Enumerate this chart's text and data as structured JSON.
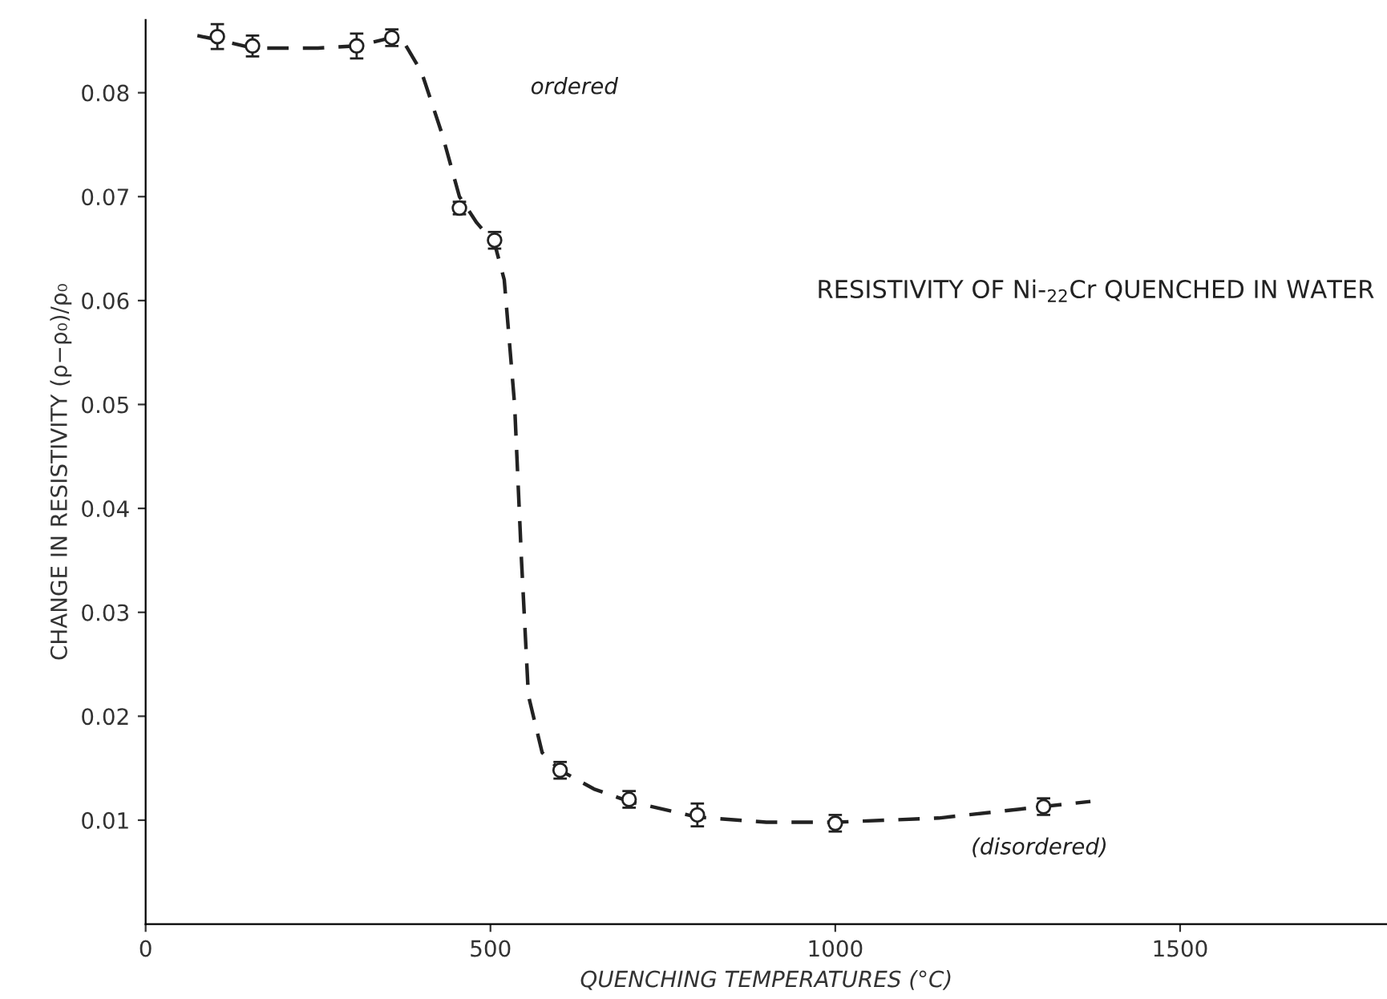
{
  "chart_data": {
    "type": "scatter",
    "title": "RESISTIVITY OF Ni-$_{22}$Cr QUENCHED IN WATER",
    "xlabel": "QUENCHING TEMPERATURES (°C)",
    "ylabel": "CHANGE IN RESISTIVITY (ρ−ρ₀)/ρ₀",
    "xlim": [
      0,
      1800
    ],
    "ylim": [
      0,
      0.087
    ],
    "xticks": [
      0,
      500,
      1000,
      1500
    ],
    "yticks": [
      0.01,
      0.02,
      0.03,
      0.04,
      0.05,
      0.06,
      0.07,
      0.08
    ],
    "grid": false,
    "legend": false,
    "series": [
      {
        "color": "#222222",
        "marker": "circle",
        "x": [
          104,
          155,
          306,
          357,
          455,
          506,
          601,
          701,
          800,
          1000,
          1302
        ],
        "values": [
          0.0854,
          0.0845,
          0.0845,
          0.0853,
          0.0689,
          0.0658,
          0.0148,
          0.012,
          0.0105,
          0.0097,
          0.0113
        ],
        "errors": [
          0.0012,
          0.001,
          0.0012,
          0.0008,
          0.0006,
          0.0008,
          0.0008,
          0.0008,
          0.0011,
          0.0008,
          0.0008
        ]
      },
      {
        "type": "line",
        "color": "#222222",
        "line_style": "dashed",
        "marker": "none",
        "x": [
          75,
          104,
          155,
          250,
          306,
          357,
          375,
          400,
          430,
          455,
          480,
          506,
          520,
          535,
          545,
          555,
          575,
          601,
          650,
          701,
          800,
          900,
          1000,
          1150,
          1300,
          1370
        ],
        "values": [
          0.0855,
          0.0851,
          0.0843,
          0.0843,
          0.0845,
          0.0853,
          0.0848,
          0.082,
          0.076,
          0.07,
          0.0675,
          0.0655,
          0.062,
          0.05,
          0.035,
          0.022,
          0.0165,
          0.0148,
          0.013,
          0.0118,
          0.0103,
          0.0098,
          0.0098,
          0.0102,
          0.0113,
          0.0118
        ]
      }
    ],
    "annotations": [
      "ordered",
      "(disordered)"
    ]
  }
}
